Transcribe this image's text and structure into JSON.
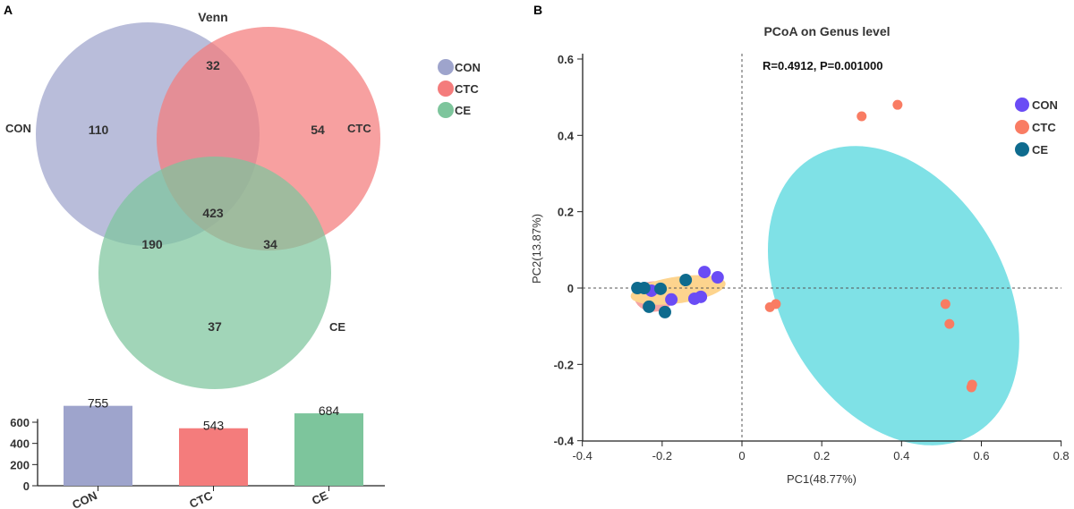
{
  "chart_data": [
    {
      "panel": "A",
      "type": "venn",
      "title": "Venn",
      "sets": [
        "CON",
        "CTC",
        "CE"
      ],
      "colors": {
        "CON": "#9ea4cc",
        "CTC": "#f47c7c",
        "CE": "#7dc59c"
      },
      "regions": {
        "CON_only": 110,
        "CTC_only": 54,
        "CE_only": 37,
        "CON_CTC": 32,
        "CON_CE": 190,
        "CTC_CE": 34,
        "all": 423
      },
      "legend": [
        "CON",
        "CTC",
        "CE"
      ],
      "legend_placement": "top-right"
    },
    {
      "panel": "A-bar",
      "type": "bar",
      "categories": [
        "CON",
        "CTC",
        "CE"
      ],
      "values": [
        755,
        543,
        684
      ],
      "yticks": [
        0,
        200,
        400,
        600
      ],
      "ylim": [
        0,
        800
      ],
      "colors": [
        "#9ea4cc",
        "#f47c7c",
        "#7dc59c"
      ]
    },
    {
      "panel": "B",
      "type": "scatter",
      "title": "PCoA on Genus level",
      "annotation": "R=0.4912, P=0.001000",
      "xlabel": "PC1(48.77%)",
      "ylabel": "PC2(13.87%)",
      "xlim": [
        -0.4,
        0.8
      ],
      "ylim": [
        -0.4,
        0.6
      ],
      "xticks": [
        -0.4,
        -0.2,
        0,
        0.2,
        0.4,
        0.6,
        0.8
      ],
      "yticks": [
        -0.4,
        -0.2,
        0,
        0.2,
        0.4,
        0.6
      ],
      "xtick_labels": [
        "-0.4",
        "-0.2",
        "0",
        "0.2",
        "0.4",
        "0.6",
        "0.8"
      ],
      "ytick_labels": [
        "-0.4",
        "-0.2",
        "0",
        "0.2",
        "0.4",
        "0.6"
      ],
      "legend_placement": "top-right",
      "series": [
        {
          "name": "CON",
          "color": "#6a4cf5",
          "ellipse_color": "#fdd48e",
          "points": [
            [
              -0.094,
              0.042
            ],
            [
              -0.061,
              0.028
            ],
            [
              -0.227,
              -0.007
            ],
            [
              -0.177,
              -0.03
            ],
            [
              -0.119,
              -0.028
            ],
            [
              -0.103,
              -0.023
            ]
          ]
        },
        {
          "name": "CTC",
          "color": "#f97c63",
          "ellipse_color": "#7fe1e6",
          "points": [
            [
              0.3,
              0.45
            ],
            [
              0.39,
              0.48
            ],
            [
              0.07,
              -0.05
            ],
            [
              0.085,
              -0.042
            ],
            [
              0.51,
              -0.042
            ],
            [
              0.52,
              -0.094
            ],
            [
              0.575,
              -0.26
            ],
            [
              0.577,
              -0.253
            ]
          ]
        },
        {
          "name": "CE",
          "color": "#0e6b8e",
          "ellipse_color": "#f5a3a3",
          "points": [
            [
              -0.262,
              0.0
            ],
            [
              -0.245,
              0.0
            ],
            [
              -0.204,
              -0.002
            ],
            [
              -0.141,
              0.021
            ],
            [
              -0.233,
              -0.049
            ],
            [
              -0.193,
              -0.063
            ]
          ]
        }
      ]
    }
  ],
  "labels": {
    "panel_a": "A",
    "panel_b": "B"
  }
}
